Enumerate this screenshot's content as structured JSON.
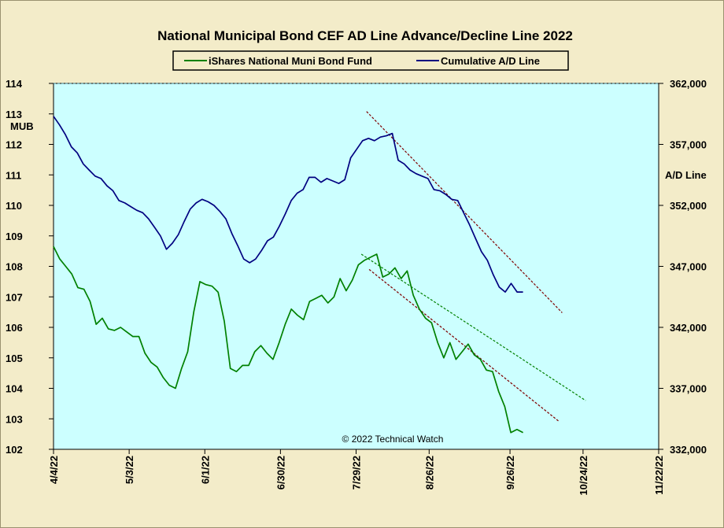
{
  "chart_data": {
    "type": "line",
    "title": "National Municipal Bond CEF AD Line Advance/Decline Line 2022",
    "left_axis": {
      "label": "MUB",
      "range": [
        102,
        114
      ],
      "ticks": [
        "114",
        "113",
        "112",
        "111",
        "110",
        "109",
        "108",
        "107",
        "106",
        "105",
        "104",
        "103",
        "102"
      ]
    },
    "right_axis": {
      "label": "A/D Line",
      "range": [
        332000,
        362000
      ],
      "ticks": [
        "362,000",
        "357,000",
        "352,000",
        "347,000",
        "342,000",
        "337,000",
        "332,000"
      ]
    },
    "x_axis": {
      "ticks": [
        "4/4/22",
        "5/3/22",
        "6/1/22",
        "6/30/22",
        "7/29/22",
        "8/26/22",
        "9/26/22",
        "10/24/22",
        "11/22/22"
      ]
    },
    "legend": {
      "placement": "top-center",
      "entries": [
        {
          "name": "iShares National Muni Bond Fund",
          "color": "#008000"
        },
        {
          "name": "Cumulative A/D Line",
          "color": "#000080"
        }
      ]
    },
    "annotation": "© 2022 Technical Watch",
    "series": [
      {
        "name": "iShares National Muni Bond Fund",
        "axis": "left",
        "color": "#008000",
        "values": [
          108.65,
          108.25,
          108.0,
          107.75,
          107.3,
          107.25,
          106.85,
          106.1,
          106.3,
          105.95,
          105.9,
          106.0,
          105.85,
          105.7,
          105.7,
          105.15,
          104.85,
          104.7,
          104.35,
          104.1,
          104.0,
          104.65,
          105.2,
          106.5,
          107.5,
          107.4,
          107.35,
          107.15,
          106.2,
          104.65,
          104.55,
          104.75,
          104.75,
          105.2,
          105.4,
          105.15,
          104.95,
          105.5,
          106.1,
          106.6,
          106.4,
          106.25,
          106.85,
          106.95,
          107.05,
          106.8,
          107.0,
          107.6,
          107.2,
          107.55,
          108.05,
          108.2,
          108.3,
          108.4,
          107.65,
          107.75,
          107.95,
          107.6,
          107.85,
          107.05,
          106.6,
          106.3,
          106.15,
          105.5,
          105.0,
          105.5,
          104.95,
          105.2,
          105.45,
          105.1,
          104.95,
          104.6,
          104.55,
          103.9,
          103.4,
          102.55,
          102.65,
          102.55
        ]
      },
      {
        "name": "Cumulative A/D Line",
        "axis": "right",
        "values": [
          359300,
          358600,
          357800,
          356800,
          356300,
          355400,
          354900,
          354400,
          354200,
          353600,
          353200,
          352400,
          352200,
          351900,
          351600,
          351400,
          350900,
          350200,
          349500,
          348400,
          348900,
          349600,
          350700,
          351700,
          352200,
          352500,
          352300,
          352000,
          351500,
          350900,
          349700,
          348700,
          347600,
          347300,
          347600,
          348300,
          349100,
          349400,
          350300,
          351300,
          352400,
          353000,
          353300,
          354300,
          354300,
          353900,
          354200,
          354000,
          353800,
          354100,
          355900,
          356600,
          357300,
          357500,
          357300,
          357600,
          357700,
          357900,
          355700,
          355400,
          354900,
          354600,
          354400,
          354200,
          353300,
          353200,
          352900,
          352500,
          352400,
          351400,
          350400,
          349300,
          348200,
          347500,
          346300,
          345300,
          344900,
          345600,
          344900,
          344900
        ],
        "color": "#000080"
      }
    ],
    "trendlines": [
      {
        "axis": "left",
        "from": [
          "7/31/22",
          108.4
        ],
        "to": [
          "10/25/22",
          103.6
        ],
        "color": "#008000",
        "style": "dashed"
      },
      {
        "axis": "left",
        "from": [
          "8/3/22",
          107.9
        ],
        "to": [
          "10/15/22",
          102.9
        ],
        "color": "#800000",
        "style": "dashed"
      },
      {
        "axis": "right",
        "from": [
          "8/2/22",
          359700
        ],
        "to": [
          "10/16/22",
          343200
        ],
        "color": "#800000",
        "style": "dashed"
      }
    ]
  }
}
